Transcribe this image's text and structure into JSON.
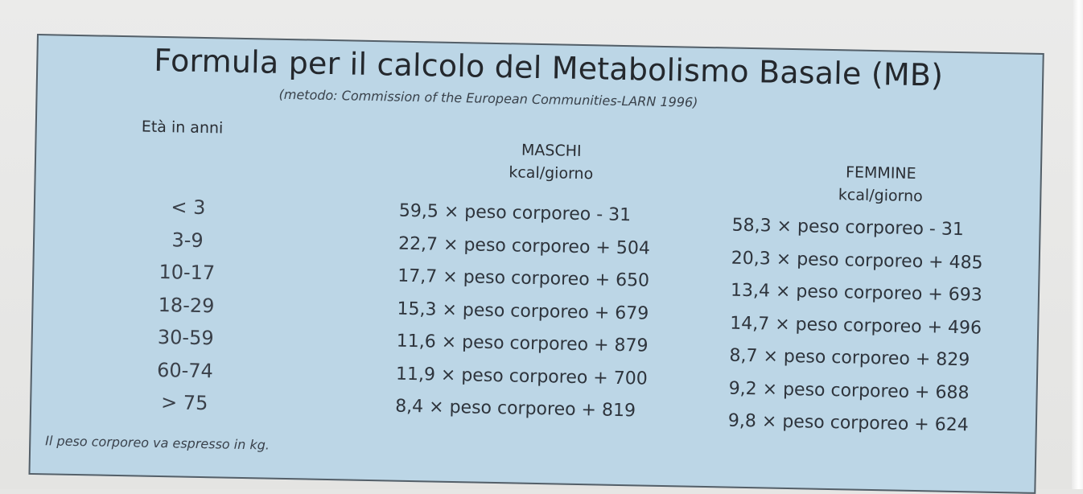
{
  "title": "Formula per il calcolo del Metabolismo Basale (MB)",
  "subtitle": "(metodo: Commission of the European Communities-LARN 1996)",
  "columns": {
    "age": "Età in anni",
    "male": "MASCHI",
    "female": "FEMMINE",
    "unit": "kcal/giorno"
  },
  "rows": [
    {
      "age": "< 3",
      "male": "59,5 × peso corporeo - 31",
      "female": "58,3 × peso corporeo - 31"
    },
    {
      "age": "3-9",
      "male": "22,7 × peso corporeo + 504",
      "female": "20,3 × peso corporeo + 485"
    },
    {
      "age": "10-17",
      "male": "17,7 × peso corporeo + 650",
      "female": "13,4 × peso corporeo + 693"
    },
    {
      "age": "18-29",
      "male": "15,3 × peso corporeo + 679",
      "female": "14,7 × peso corporeo + 496"
    },
    {
      "age": "30-59",
      "male": "11,6 × peso corporeo + 879",
      "female": "8,7 × peso corporeo + 829"
    },
    {
      "age": "60-74",
      "male": "11,9 × peso corporeo + 700",
      "female": "9,2 × peso corporeo + 688"
    },
    {
      "age": "> 75",
      "male": "8,4 × peso corporeo + 819",
      "female": "9,8 × peso corporeo + 624"
    }
  ],
  "note": "Il peso corporeo va espresso in kg."
}
